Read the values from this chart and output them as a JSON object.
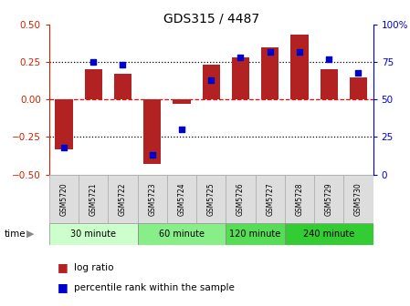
{
  "title": "GDS315 / 4487",
  "samples": [
    "GSM5720",
    "GSM5721",
    "GSM5722",
    "GSM5723",
    "GSM5724",
    "GSM5725",
    "GSM5726",
    "GSM5727",
    "GSM5728",
    "GSM5729",
    "GSM5730"
  ],
  "log_ratio": [
    -0.33,
    0.2,
    0.17,
    -0.43,
    -0.03,
    0.23,
    0.28,
    0.35,
    0.43,
    0.2,
    0.15
  ],
  "percentile": [
    18,
    75,
    73,
    13,
    30,
    63,
    78,
    82,
    82,
    77,
    68
  ],
  "bar_color": "#b22222",
  "dot_color": "#0000cd",
  "ylim_left": [
    -0.5,
    0.5
  ],
  "ylim_right": [
    0,
    100
  ],
  "yticks_left": [
    -0.5,
    -0.25,
    0,
    0.25,
    0.5
  ],
  "yticks_right": [
    0,
    25,
    50,
    75,
    100
  ],
  "groups": [
    {
      "label": "30 minute",
      "start": 0,
      "end": 2,
      "color": "#ccffcc"
    },
    {
      "label": "60 minute",
      "start": 3,
      "end": 5,
      "color": "#88ee88"
    },
    {
      "label": "120 minute",
      "start": 6,
      "end": 7,
      "color": "#55dd55"
    },
    {
      "label": "240 minute",
      "start": 8,
      "end": 10,
      "color": "#33cc33"
    }
  ],
  "legend_log_ratio": "log ratio",
  "legend_percentile": "percentile rank within the sample",
  "left_axis_color": "#cc2200",
  "right_axis_color": "#0000cc",
  "bar_width": 0.6,
  "dot_size": 25
}
